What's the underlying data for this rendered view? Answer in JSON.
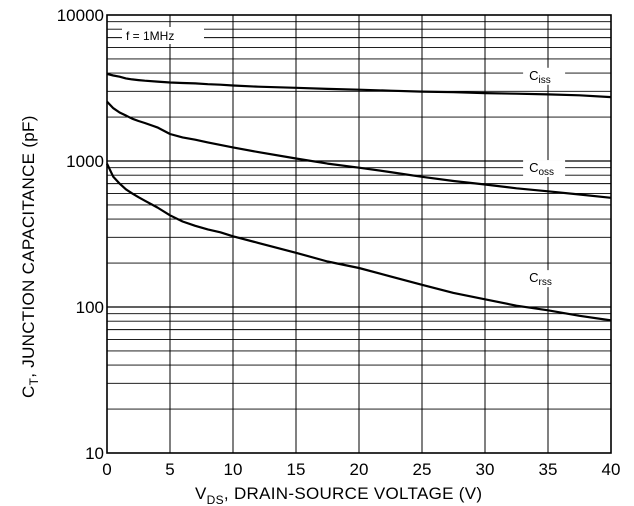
{
  "chart_data": {
    "type": "line",
    "xlabel": {
      "prefix": "V",
      "sub": "DS",
      "rest": ", DRAIN-SOURCE VOLTAGE (V)"
    },
    "ylabel": {
      "prefix": "C",
      "sub": "T",
      "rest": ", JUNCTION CAPACITANCE (pF)"
    },
    "annotation": "f = 1MHz",
    "xlim": [
      0,
      40
    ],
    "ylim": [
      10,
      10000
    ],
    "y_scale": "log",
    "grid": true,
    "x_ticks": [
      0,
      5,
      10,
      15,
      20,
      25,
      30,
      35,
      40
    ],
    "x_tick_labels": [
      "0",
      "5",
      "10",
      "15",
      "20",
      "25",
      "30",
      "35",
      "40"
    ],
    "y_ticks": [
      10,
      100,
      1000,
      10000
    ],
    "y_tick_labels": [
      "10",
      "100",
      "1000",
      "10000"
    ],
    "series": [
      {
        "name": "Ciss",
        "label_main": "C",
        "label_sub": "iss",
        "label_at": [
          33.5,
          3600
        ],
        "x": [
          0,
          0.5,
          1,
          1.5,
          2,
          2.5,
          3,
          4,
          5,
          6,
          7,
          8,
          9,
          10,
          12,
          15,
          17.5,
          20,
          22.5,
          25,
          27.5,
          30,
          32.5,
          35,
          37.5,
          40
        ],
        "y": [
          3950,
          3850,
          3780,
          3680,
          3620,
          3580,
          3550,
          3500,
          3450,
          3420,
          3400,
          3360,
          3330,
          3290,
          3230,
          3170,
          3120,
          3080,
          3030,
          2990,
          2960,
          2920,
          2890,
          2860,
          2820,
          2740
        ]
      },
      {
        "name": "Coss",
        "label_main": "C",
        "label_sub": "oss",
        "label_at": [
          33.5,
          840
        ],
        "x": [
          0,
          0.5,
          1,
          1.5,
          2,
          2.5,
          3,
          4,
          5,
          6,
          7,
          8,
          9,
          10,
          12,
          15,
          17.5,
          20,
          22.5,
          25,
          27.5,
          30,
          32.5,
          35,
          37.5,
          40
        ],
        "y": [
          2550,
          2300,
          2150,
          2050,
          1950,
          1880,
          1820,
          1700,
          1530,
          1450,
          1400,
          1340,
          1290,
          1240,
          1150,
          1040,
          960,
          900,
          840,
          780,
          730,
          690,
          650,
          620,
          590,
          560
        ]
      },
      {
        "name": "Crss",
        "label_main": "C",
        "label_sub": "rss",
        "label_at": [
          33.5,
          148
        ],
        "x": [
          0,
          0.5,
          1,
          1.5,
          2,
          2.5,
          3,
          4,
          5,
          6,
          7,
          8,
          9,
          10,
          12,
          15,
          17.5,
          20,
          22.5,
          25,
          27.5,
          30,
          32.5,
          35,
          37.5,
          40
        ],
        "y": [
          960,
          780,
          700,
          640,
          600,
          565,
          535,
          480,
          425,
          385,
          360,
          340,
          325,
          305,
          275,
          235,
          205,
          185,
          162,
          142,
          125,
          113,
          102,
          95,
          87,
          81
        ]
      }
    ]
  }
}
